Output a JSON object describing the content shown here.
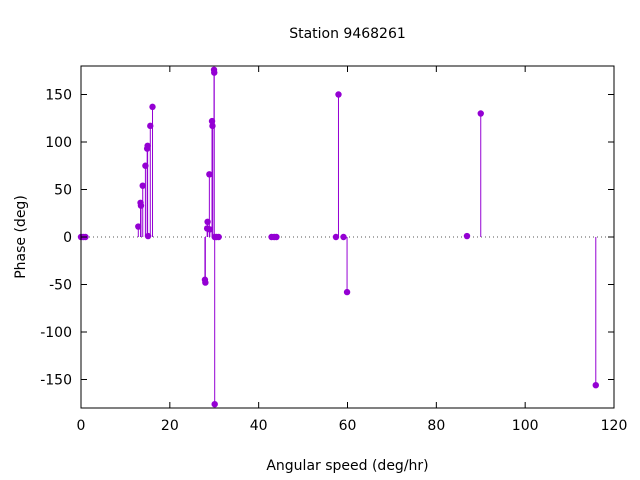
{
  "chart_data": {
    "type": "scatter",
    "title": "Station 9468261",
    "xlabel": "Angular speed (deg/hr)",
    "ylabel": "Phase (deg)",
    "xlim": [
      0,
      120
    ],
    "ylim": [
      -180,
      180
    ],
    "xticks": [
      0,
      20,
      40,
      60,
      80,
      100,
      120
    ],
    "yticks": [
      -150,
      -100,
      -50,
      0,
      50,
      100,
      150
    ],
    "xtick_labels": [
      "0",
      "20",
      "40",
      "60",
      "80",
      "100",
      "120"
    ],
    "ytick_labels": [
      "-150",
      "-100",
      "-50",
      "0",
      "50",
      "100",
      "150"
    ],
    "zero_line": "dotted",
    "marker_style": "impulse with point",
    "series": [
      {
        "color": "#9400d3",
        "points": [
          {
            "x": 0.0,
            "y": 0
          },
          {
            "x": 0.5,
            "y": 0
          },
          {
            "x": 1.0,
            "y": 0
          },
          {
            "x": 12.9,
            "y": 11
          },
          {
            "x": 13.4,
            "y": 36
          },
          {
            "x": 13.5,
            "y": 33
          },
          {
            "x": 13.9,
            "y": 54
          },
          {
            "x": 14.5,
            "y": 75
          },
          {
            "x": 14.9,
            "y": 93
          },
          {
            "x": 15.0,
            "y": 96
          },
          {
            "x": 15.1,
            "y": 1
          },
          {
            "x": 15.6,
            "y": 117
          },
          {
            "x": 16.1,
            "y": 137
          },
          {
            "x": 27.9,
            "y": -45
          },
          {
            "x": 28.0,
            "y": -48
          },
          {
            "x": 28.4,
            "y": 9
          },
          {
            "x": 28.5,
            "y": 16
          },
          {
            "x": 28.9,
            "y": 66
          },
          {
            "x": 29.0,
            "y": 8
          },
          {
            "x": 29.5,
            "y": 122
          },
          {
            "x": 29.6,
            "y": 117
          },
          {
            "x": 29.95,
            "y": 176
          },
          {
            "x": 30.0,
            "y": 173
          },
          {
            "x": 30.1,
            "y": -176
          },
          {
            "x": 30.1,
            "y": 0
          },
          {
            "x": 30.5,
            "y": 0
          },
          {
            "x": 31.0,
            "y": 0
          },
          {
            "x": 42.9,
            "y": 0
          },
          {
            "x": 43.5,
            "y": 0
          },
          {
            "x": 44.0,
            "y": 0
          },
          {
            "x": 57.4,
            "y": 0
          },
          {
            "x": 57.97,
            "y": 150
          },
          {
            "x": 59.1,
            "y": 0
          },
          {
            "x": 59.9,
            "y": -58
          },
          {
            "x": 86.9,
            "y": 1
          },
          {
            "x": 90.0,
            "y": 130
          },
          {
            "x": 115.9,
            "y": -156
          }
        ]
      }
    ]
  }
}
